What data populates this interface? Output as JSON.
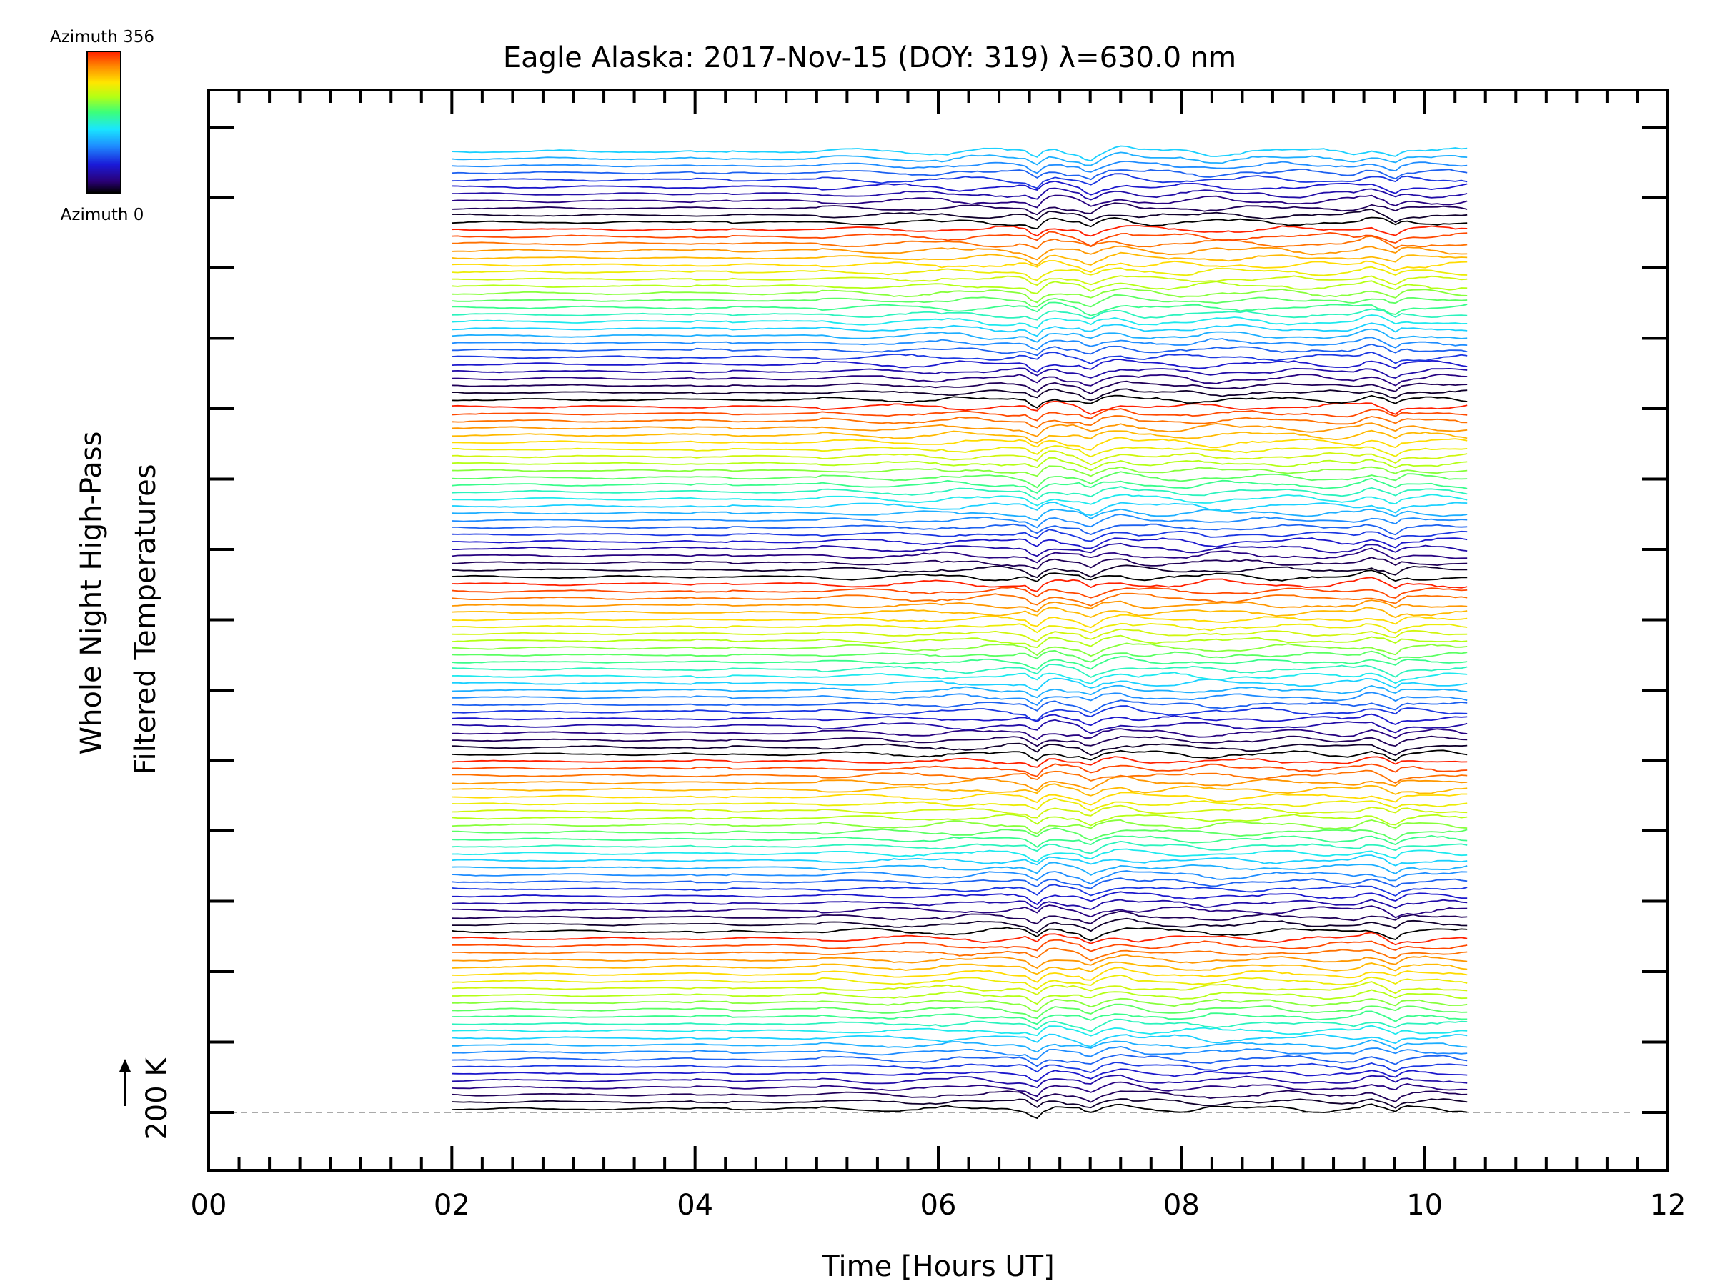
{
  "chart_data": {
    "type": "line",
    "title": "Eagle Alaska: 2017-Nov-15 (DOY: 319) λ=630.0 nm",
    "xlabel": "Time [Hours UT]",
    "ylabel_line1": "Whole Night High-Pass",
    "ylabel_line2": "Filtered Temperatures",
    "scale_label": "200 K",
    "xlim": [
      0,
      12
    ],
    "x_ticks": [
      "00",
      "02",
      "04",
      "06",
      "08",
      "10",
      "12"
    ],
    "data_time_range_hours": [
      2.0,
      10.35
    ],
    "series_count": 136,
    "azimuth_cycle": 25,
    "colorbar": {
      "top_label": "Azimuth 356",
      "bottom_label": "Azimuth 0",
      "colormap": [
        "#000000",
        "#2a0075",
        "#1a1ad8",
        "#1e8cff",
        "#19e6ff",
        "#3cff7a",
        "#b4ff14",
        "#ffe600",
        "#ff8c00",
        "#ff2000"
      ]
    },
    "events_hours": [
      6.8,
      7.25,
      8.25,
      9.75
    ],
    "baseline_style": "dashed-gray"
  }
}
